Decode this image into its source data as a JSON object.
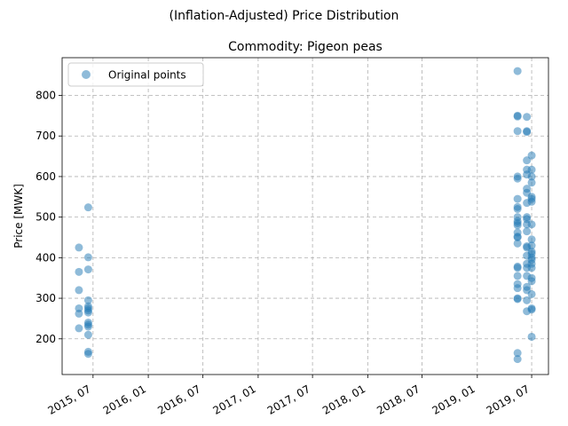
{
  "chart_data": {
    "type": "scatter",
    "suptitle": "(Inflation-Adjusted) Price Distribution",
    "title": "Commodity: Pigeon peas",
    "xlabel": "",
    "ylabel": "Price [MWK]",
    "x_ticks": [
      "2015-07-01",
      "2016-01-01",
      "2016-07-01",
      "2017-01-01",
      "2017-07-01",
      "2018-01-01",
      "2018-07-01",
      "2019-01-01",
      "2019-07-01"
    ],
    "x_tick_labels": [
      "2015, 07",
      "2016, 01",
      "2016, 07",
      "2017, 01",
      "2017, 07",
      "2018, 01",
      "2018, 07",
      "2019, 01",
      "2019, 07"
    ],
    "xlim": [
      "2015-03-20",
      "2019-08-26"
    ],
    "y_ticks": [
      200,
      300,
      400,
      500,
      600,
      700,
      800
    ],
    "ylim": [
      112,
      893
    ],
    "grid": true,
    "legend": {
      "position": "upper-left",
      "entries": [
        "Original points"
      ]
    },
    "marker_color": "#1f77b4",
    "series": [
      {
        "name": "Original points",
        "points": [
          {
            "x": "2015-05-15",
            "y": [
              425,
              365,
              320,
              275,
              262,
              226
            ]
          },
          {
            "x": "2015-06-15",
            "y": [
              524,
              401,
              371,
              295,
              280,
              275,
              270,
              265,
              240,
              235,
              230,
              210,
              168,
              163
            ]
          },
          {
            "x": "2019-05-15",
            "y": [
              860,
              750,
              748,
              712,
              600,
              595,
              545,
              525,
              520,
              500,
              490,
              485,
              480,
              462,
              452,
              450,
              435,
              378,
              375,
              355,
              335,
              325,
              300,
              298,
              165,
              150
            ]
          },
          {
            "x": "2019-06-15",
            "y": [
              747,
              712,
              710,
              640,
              617,
              605,
              570,
              560,
              535,
              500,
              495,
              482,
              465,
              428,
              425,
              405,
              385,
              375,
              355,
              328,
              320,
              295,
              268
            ]
          },
          {
            "x": "2019-07-01",
            "y": [
              652,
              617,
              600,
              585,
              550,
              545,
              538,
              482,
              445,
              430,
              415,
              410,
              400,
              395,
              385,
              375,
              350,
              342,
              310,
              275,
              272,
              205
            ]
          }
        ]
      }
    ]
  }
}
